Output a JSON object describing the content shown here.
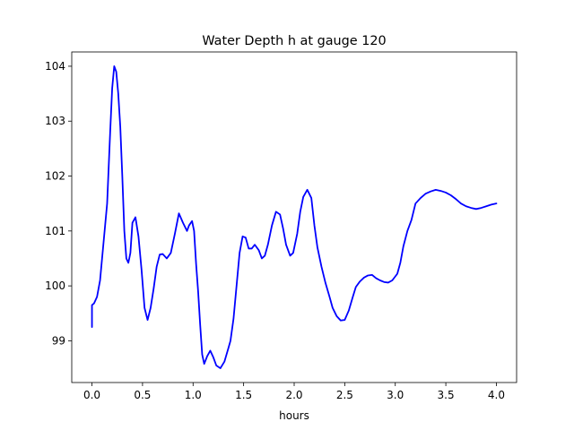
{
  "chart_data": {
    "type": "line",
    "title": "Water Depth h at gauge 120",
    "xlabel": "hours",
    "ylabel": "",
    "xlim": [
      -0.2,
      4.2
    ],
    "ylim": [
      98.24,
      104.26
    ],
    "xticks": [
      0.0,
      0.5,
      1.0,
      1.5,
      2.0,
      2.5,
      3.0,
      3.5,
      4.0
    ],
    "xtick_labels": [
      "0.0",
      "0.5",
      "1.0",
      "1.5",
      "2.0",
      "2.5",
      "3.0",
      "3.5",
      "4.0"
    ],
    "yticks": [
      99,
      100,
      101,
      102,
      103,
      104
    ],
    "ytick_labels": [
      "99",
      "100",
      "101",
      "102",
      "103",
      "104"
    ],
    "grid": false,
    "series": [
      {
        "color": "#0000ff",
        "x": [
          0.0,
          0.0,
          0.02,
          0.05,
          0.08,
          0.11,
          0.15,
          0.18,
          0.2,
          0.22,
          0.24,
          0.26,
          0.28,
          0.3,
          0.32,
          0.34,
          0.36,
          0.38,
          0.4,
          0.43,
          0.46,
          0.49,
          0.52,
          0.55,
          0.58,
          0.61,
          0.64,
          0.67,
          0.7,
          0.74,
          0.78,
          0.82,
          0.86,
          0.9,
          0.94,
          0.96,
          0.99,
          1.01,
          1.03,
          1.05,
          1.07,
          1.09,
          1.11,
          1.14,
          1.17,
          1.2,
          1.23,
          1.27,
          1.31,
          1.35,
          1.37,
          1.4,
          1.43,
          1.46,
          1.49,
          1.52,
          1.55,
          1.58,
          1.61,
          1.65,
          1.68,
          1.71,
          1.74,
          1.78,
          1.82,
          1.86,
          1.89,
          1.92,
          1.96,
          1.99,
          2.03,
          2.06,
          2.09,
          2.13,
          2.17,
          2.2,
          2.23,
          2.27,
          2.31,
          2.35,
          2.38,
          2.42,
          2.46,
          2.5,
          2.54,
          2.58,
          2.61,
          2.65,
          2.69,
          2.73,
          2.77,
          2.81,
          2.85,
          2.89,
          2.93,
          2.97,
          3.02,
          3.05,
          3.08,
          3.12,
          3.16,
          3.2,
          3.25,
          3.3,
          3.35,
          3.4,
          3.45,
          3.5,
          3.55,
          3.6,
          3.65,
          3.7,
          3.75,
          3.8,
          3.85,
          3.9,
          3.95,
          4.0
        ],
        "y": [
          99.25,
          99.65,
          99.68,
          99.8,
          100.1,
          100.7,
          101.5,
          102.8,
          103.6,
          104.0,
          103.9,
          103.5,
          102.9,
          102.0,
          101.0,
          100.5,
          100.42,
          100.6,
          101.15,
          101.25,
          100.9,
          100.3,
          99.6,
          99.38,
          99.6,
          99.95,
          100.35,
          100.57,
          100.58,
          100.5,
          100.6,
          100.95,
          101.32,
          101.15,
          101.0,
          101.1,
          101.18,
          101.0,
          100.4,
          99.9,
          99.3,
          98.75,
          98.58,
          98.72,
          98.82,
          98.7,
          98.55,
          98.5,
          98.62,
          98.87,
          99.0,
          99.4,
          100.0,
          100.6,
          100.9,
          100.88,
          100.68,
          100.68,
          100.75,
          100.65,
          100.5,
          100.55,
          100.75,
          101.1,
          101.35,
          101.3,
          101.05,
          100.75,
          100.55,
          100.6,
          100.95,
          101.35,
          101.62,
          101.75,
          101.6,
          101.1,
          100.7,
          100.35,
          100.05,
          99.8,
          99.6,
          99.45,
          99.37,
          99.38,
          99.55,
          99.8,
          99.98,
          100.08,
          100.15,
          100.19,
          100.2,
          100.14,
          100.1,
          100.07,
          100.06,
          100.1,
          100.22,
          100.42,
          100.72,
          101.0,
          101.2,
          101.5,
          101.6,
          101.68,
          101.72,
          101.75,
          101.73,
          101.7,
          101.65,
          101.58,
          101.5,
          101.45,
          101.42,
          101.4,
          101.42,
          101.45,
          101.48,
          101.5
        ]
      }
    ]
  }
}
